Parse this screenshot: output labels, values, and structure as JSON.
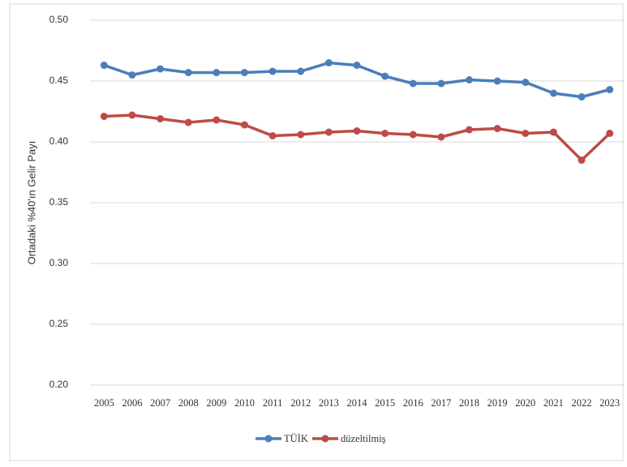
{
  "chart_data": {
    "type": "line",
    "y_label": "Ortadaki %40'ın Gelir Payı",
    "categories": [
      "2005",
      "2006",
      "2007",
      "2008",
      "2009",
      "2010",
      "2011",
      "2012",
      "2013",
      "2014",
      "2015",
      "2016",
      "2017",
      "2018",
      "2019",
      "2020",
      "2021",
      "2022",
      "2023"
    ],
    "series": [
      {
        "name": "TÜİK",
        "color": "#4a7ebb",
        "values": [
          0.463,
          0.455,
          0.46,
          0.457,
          0.457,
          0.457,
          0.458,
          0.458,
          0.465,
          0.463,
          0.454,
          0.448,
          0.448,
          0.451,
          0.45,
          0.449,
          0.44,
          0.437,
          0.443
        ]
      },
      {
        "name": "düzeltilmiş",
        "color": "#be4b48",
        "values": [
          0.421,
          0.422,
          0.419,
          0.416,
          0.418,
          0.414,
          0.405,
          0.406,
          0.408,
          0.409,
          0.407,
          0.406,
          0.404,
          0.41,
          0.411,
          0.407,
          0.408,
          0.385,
          0.407
        ]
      }
    ],
    "ylim": [
      0.2,
      0.5
    ],
    "yticks": [
      {
        "value": 0.2,
        "label": "0.20"
      },
      {
        "value": 0.25,
        "label": "0.25"
      },
      {
        "value": 0.3,
        "label": "0.30"
      },
      {
        "value": 0.35,
        "label": "0.35"
      },
      {
        "value": 0.4,
        "label": "0.40"
      },
      {
        "value": 0.45,
        "label": "0.45"
      },
      {
        "value": 0.5,
        "label": "0.50"
      }
    ],
    "grid": true,
    "legend": "bottom"
  }
}
